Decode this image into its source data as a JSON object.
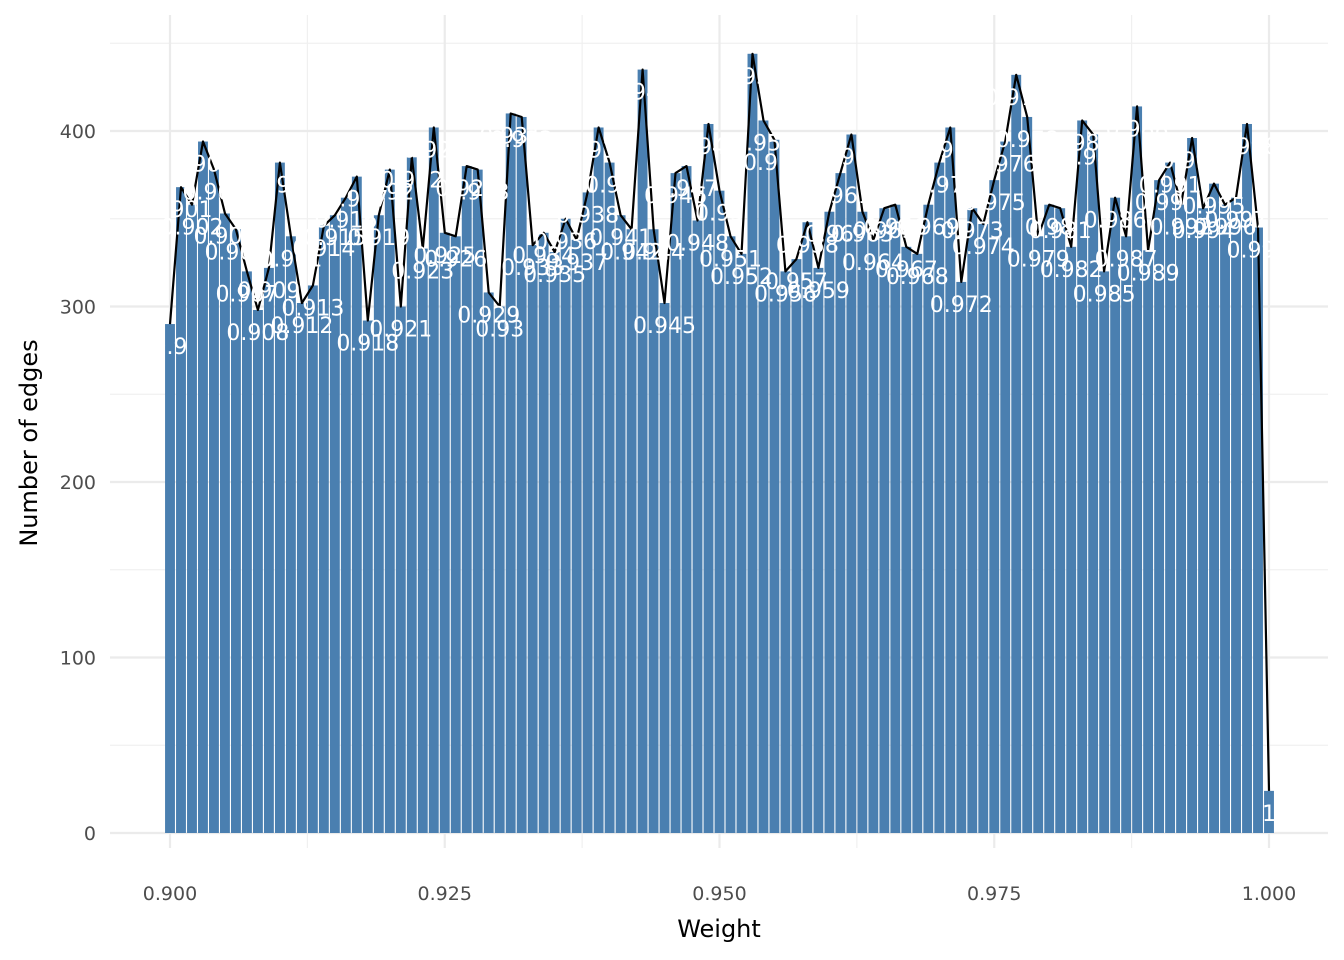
{
  "chart_data": {
    "type": "bar",
    "title": "",
    "xlabel": "Weight",
    "ylabel": "Number of edges",
    "xlim": [
      0.8995,
      1.0005
    ],
    "ylim": [
      0,
      450
    ],
    "x_ticks": [
      "0.900",
      "0.925",
      "0.950",
      "0.975",
      "1.000"
    ],
    "y_ticks": [
      "0",
      "100",
      "200",
      "300",
      "400"
    ],
    "grid": true,
    "legend": "none",
    "bar_color": "#4a7fb0",
    "line_color": "#000000",
    "label_color": "#ffffff",
    "x": [
      0.9,
      0.901,
      0.902,
      0.903,
      0.904,
      0.905,
      0.906,
      0.907,
      0.908,
      0.909,
      0.91,
      0.911,
      0.912,
      0.913,
      0.914,
      0.915,
      0.916,
      0.917,
      0.918,
      0.919,
      0.92,
      0.921,
      0.922,
      0.923,
      0.924,
      0.925,
      0.926,
      0.927,
      0.928,
      0.929,
      0.93,
      0.931,
      0.932,
      0.933,
      0.934,
      0.935,
      0.936,
      0.937,
      0.938,
      0.939,
      0.94,
      0.941,
      0.942,
      0.943,
      0.944,
      0.945,
      0.946,
      0.947,
      0.948,
      0.949,
      0.95,
      0.951,
      0.952,
      0.953,
      0.954,
      0.955,
      0.956,
      0.957,
      0.958,
      0.959,
      0.96,
      0.961,
      0.962,
      0.963,
      0.964,
      0.965,
      0.966,
      0.967,
      0.968,
      0.969,
      0.97,
      0.971,
      0.972,
      0.973,
      0.974,
      0.975,
      0.976,
      0.977,
      0.978,
      0.979,
      0.98,
      0.981,
      0.982,
      0.983,
      0.984,
      0.985,
      0.986,
      0.987,
      0.988,
      0.989,
      0.99,
      0.991,
      0.992,
      0.993,
      0.994,
      0.995,
      0.996,
      0.997,
      0.998,
      0.999,
      1.0
    ],
    "values": [
      290,
      368,
      358,
      394,
      378,
      353,
      344,
      320,
      298,
      322,
      382,
      340,
      302,
      312,
      346,
      352,
      362,
      374,
      292,
      352,
      378,
      300,
      385,
      333,
      402,
      342,
      340,
      380,
      378,
      308,
      300,
      410,
      408,
      335,
      342,
      331,
      350,
      338,
      365,
      402,
      382,
      352,
      344,
      435,
      344,
      302,
      376,
      380,
      349,
      404,
      366,
      340,
      330,
      444,
      406,
      395,
      320,
      327,
      348,
      322,
      354,
      376,
      398,
      354,
      338,
      356,
      358,
      334,
      330,
      358,
      382,
      402,
      314,
      356,
      347,
      372,
      394,
      432,
      408,
      340,
      358,
      356,
      334,
      406,
      398,
      320,
      362,
      340,
      414,
      332,
      372,
      382,
      358,
      396,
      356,
      370,
      358,
      362,
      404,
      345,
      24
    ],
    "labels": [
      "0.9",
      "0.901",
      "0.902",
      "0.903",
      "0.904",
      "0.905",
      "0.906",
      "0.907",
      "0.908",
      "0.909",
      "0.91",
      "0.911",
      "0.912",
      "0.913",
      "0.914",
      "0.915",
      "0.916",
      "0.917",
      "0.918",
      "0.919",
      "0.92",
      "0.921",
      "0.922",
      "0.923",
      "0.924",
      "0.925",
      "0.926",
      "0.927",
      "0.928",
      "0.929",
      "0.93",
      "0.931",
      "0.932",
      "0.933",
      "0.934",
      "0.935",
      "0.936",
      "0.937",
      "0.938",
      "0.939",
      "0.94",
      "0.941",
      "0.942",
      "0.943",
      "0.944",
      "0.945",
      "0.946",
      "0.947",
      "0.948",
      "0.949",
      "0.95",
      "0.951",
      "0.952",
      "0.953",
      "0.954",
      "0.955",
      "0.956",
      "0.957",
      "0.958",
      "0.959",
      "0.96",
      "0.961",
      "0.962",
      "0.963",
      "0.964",
      "0.965",
      "0.966",
      "0.967",
      "0.968",
      "0.969",
      "0.97",
      "0.971",
      "0.972",
      "0.973",
      "0.974",
      "0.975",
      "0.976",
      "0.977",
      "0.978",
      "0.979",
      "0.98",
      "0.981",
      "0.982",
      "0.983",
      "0.984",
      "0.985",
      "0.986",
      "0.987",
      "0.988",
      "0.989",
      "0.99",
      "0.991",
      "0.992",
      "0.993",
      "0.994",
      "0.995",
      "0.996",
      "0.997",
      "0.998",
      "0.999",
      "1"
    ]
  }
}
